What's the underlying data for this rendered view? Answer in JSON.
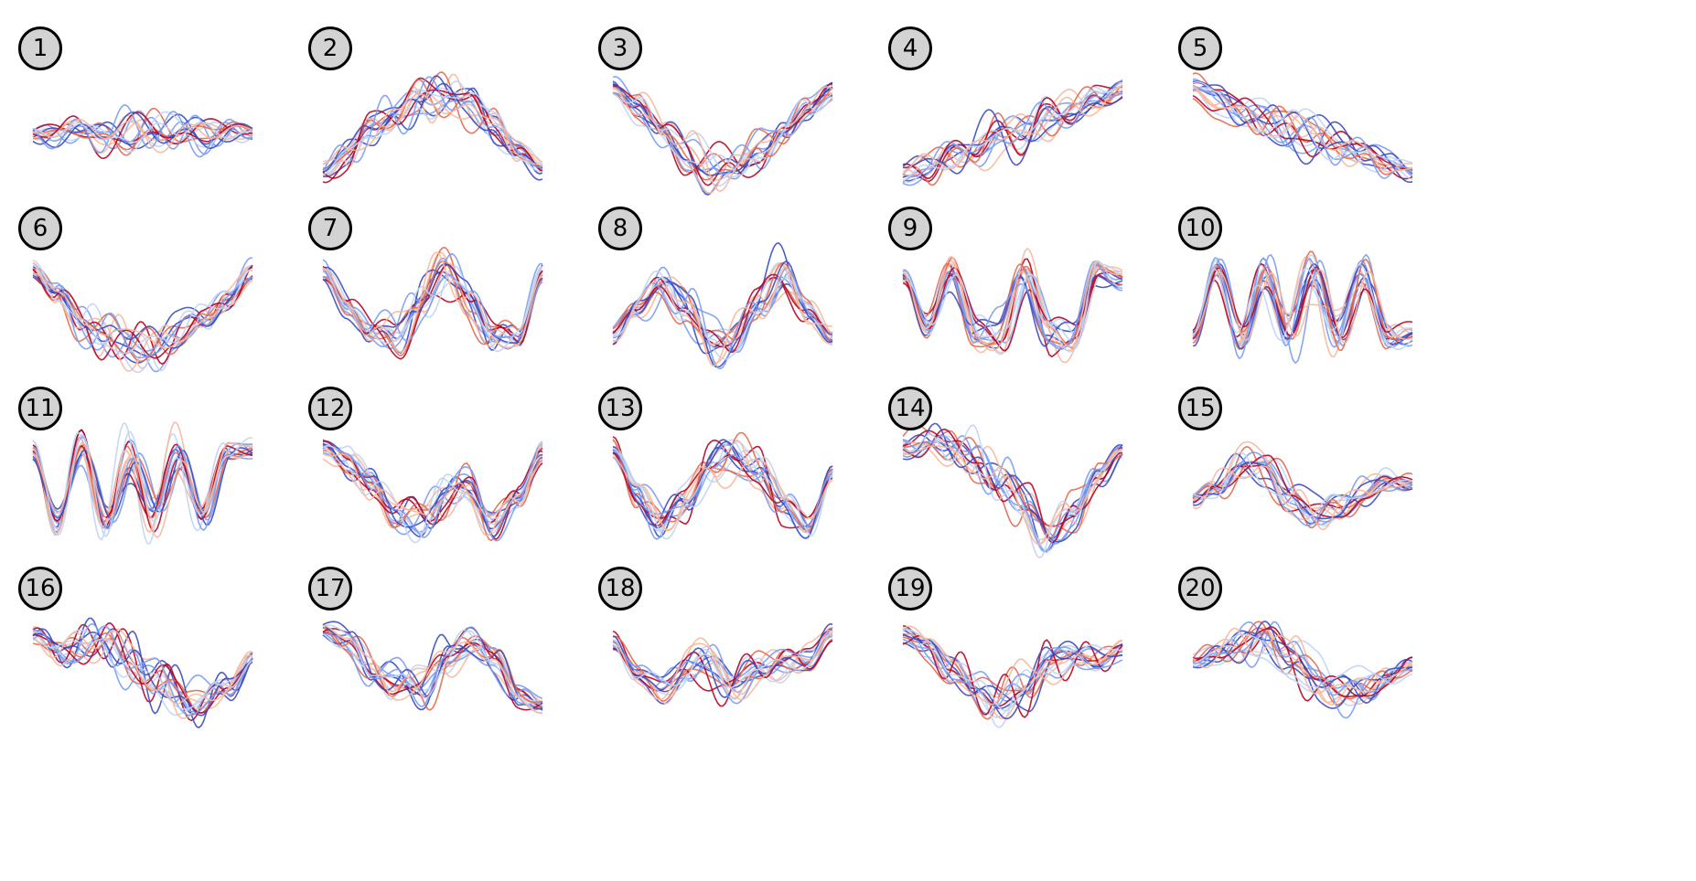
{
  "chart_data": {
    "type": "line",
    "title": "",
    "xlabel": "",
    "ylabel": "",
    "grid": false,
    "legend": "none",
    "n_panels": 20,
    "curves_per_panel": 16,
    "colormap": [
      "#3b4cc0",
      "#7a9cf2",
      "#c0d4f5",
      "#f7b89c",
      "#e46a50",
      "#b40426"
    ],
    "panels": [
      {
        "label": "1",
        "template": [
          0.5,
          0.48,
          0.52,
          0.5,
          0.47,
          0.53,
          0.5,
          0.49,
          0.51,
          0.5
        ],
        "ylim": [
          0,
          1
        ]
      },
      {
        "label": "2",
        "template": [
          0.18,
          0.32,
          0.5,
          0.66,
          0.78,
          0.84,
          0.74,
          0.56,
          0.36,
          0.18
        ],
        "ylim": [
          0,
          1
        ]
      },
      {
        "label": "3",
        "template": [
          0.88,
          0.72,
          0.52,
          0.3,
          0.16,
          0.18,
          0.34,
          0.52,
          0.7,
          0.86
        ],
        "ylim": [
          0,
          1
        ]
      },
      {
        "label": "4",
        "template": [
          0.14,
          0.2,
          0.3,
          0.38,
          0.46,
          0.52,
          0.6,
          0.7,
          0.78,
          0.86
        ],
        "ylim": [
          0,
          1
        ]
      },
      {
        "label": "5",
        "template": [
          0.88,
          0.78,
          0.68,
          0.6,
          0.52,
          0.46,
          0.4,
          0.32,
          0.24,
          0.16
        ],
        "ylim": [
          0,
          1
        ]
      },
      {
        "label": "6",
        "template": [
          0.86,
          0.64,
          0.42,
          0.28,
          0.22,
          0.22,
          0.3,
          0.44,
          0.62,
          0.84
        ],
        "ylim": [
          0,
          1
        ]
      },
      {
        "label": "7",
        "template": [
          0.84,
          0.56,
          0.34,
          0.3,
          0.58,
          0.86,
          0.58,
          0.3,
          0.28,
          0.84
        ],
        "ylim": [
          0,
          1
        ]
      },
      {
        "label": "8",
        "template": [
          0.3,
          0.52,
          0.78,
          0.52,
          0.24,
          0.28,
          0.54,
          0.84,
          0.54,
          0.28
        ],
        "ylim": [
          0,
          1
        ]
      },
      {
        "label": "9",
        "template": [
          0.82,
          0.34,
          0.88,
          0.34,
          0.26,
          0.88,
          0.34,
          0.24,
          0.86,
          0.8
        ],
        "ylim": [
          0,
          1
        ]
      },
      {
        "label": "10",
        "template": [
          0.3,
          0.86,
          0.28,
          0.84,
          0.3,
          0.84,
          0.3,
          0.86,
          0.28,
          0.32
        ],
        "ylim": [
          0,
          1
        ]
      },
      {
        "label": "11",
        "template": [
          0.84,
          0.28,
          0.86,
          0.26,
          0.84,
          0.28,
          0.86,
          0.26,
          0.84,
          0.84
        ],
        "ylim": [
          0,
          1
        ]
      },
      {
        "label": "12",
        "template": [
          0.88,
          0.76,
          0.56,
          0.32,
          0.24,
          0.5,
          0.54,
          0.24,
          0.44,
          0.84
        ],
        "ylim": [
          0,
          1
        ]
      },
      {
        "label": "13",
        "template": [
          0.86,
          0.48,
          0.22,
          0.44,
          0.7,
          0.86,
          0.7,
          0.4,
          0.18,
          0.68
        ],
        "ylim": [
          0,
          1
        ]
      },
      {
        "label": "14",
        "template": [
          0.88,
          0.9,
          0.86,
          0.78,
          0.62,
          0.4,
          0.1,
          0.32,
          0.64,
          0.86
        ],
        "ylim": [
          0,
          1
        ]
      },
      {
        "label": "15",
        "template": [
          0.46,
          0.56,
          0.74,
          0.66,
          0.44,
          0.32,
          0.38,
          0.52,
          0.58,
          0.56
        ],
        "ylim": [
          0,
          1
        ]
      },
      {
        "label": "16",
        "template": [
          0.82,
          0.68,
          0.74,
          0.8,
          0.58,
          0.42,
          0.3,
          0.24,
          0.38,
          0.62
        ],
        "ylim": [
          0,
          1
        ]
      },
      {
        "label": "17",
        "template": [
          0.86,
          0.76,
          0.56,
          0.38,
          0.36,
          0.62,
          0.78,
          0.58,
          0.3,
          0.22
        ],
        "ylim": [
          0,
          1
        ]
      },
      {
        "label": "18",
        "template": [
          0.74,
          0.5,
          0.36,
          0.54,
          0.56,
          0.42,
          0.52,
          0.58,
          0.6,
          0.82
        ],
        "ylim": [
          0,
          1
        ]
      },
      {
        "label": "19",
        "template": [
          0.82,
          0.7,
          0.56,
          0.38,
          0.24,
          0.34,
          0.58,
          0.64,
          0.6,
          0.7
        ],
        "ylim": [
          0,
          1
        ]
      },
      {
        "label": "20",
        "template": [
          0.6,
          0.66,
          0.74,
          0.78,
          0.64,
          0.44,
          0.32,
          0.4,
          0.44,
          0.56
        ],
        "ylim": [
          0,
          1
        ]
      }
    ]
  }
}
